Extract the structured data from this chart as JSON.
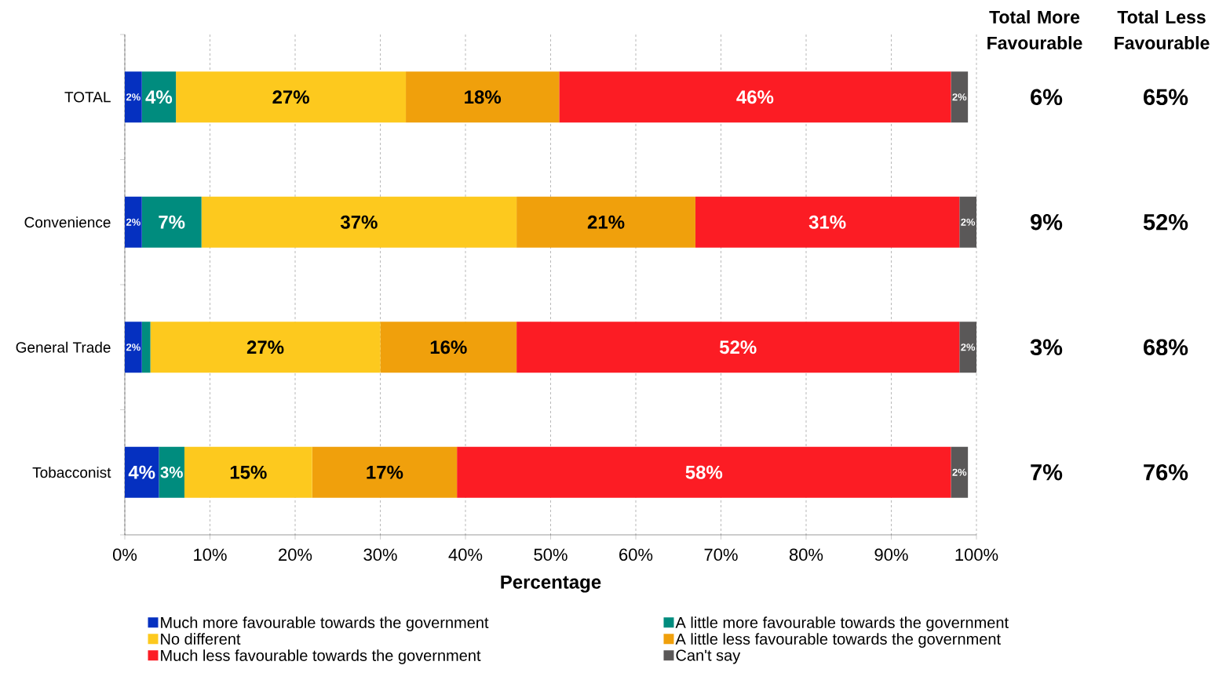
{
  "chart_data": {
    "type": "bar",
    "orientation": "horizontal",
    "stacked": true,
    "categories": [
      "TOTAL",
      "Convenience",
      "General Trade",
      "Tobacconist"
    ],
    "series": [
      {
        "name": "Much more favourable towards the government",
        "color": "#0530c0",
        "values": [
          2,
          2,
          2,
          4
        ],
        "value_labels": [
          "2%",
          "2%",
          "2%",
          "4%"
        ]
      },
      {
        "name": "A little more favourable towards the government",
        "color": "#008c7e",
        "values": [
          4,
          7,
          1,
          3
        ],
        "value_labels": [
          "4%",
          "7%",
          null,
          "3%"
        ]
      },
      {
        "name": "No different",
        "color": "#fdc91e",
        "values": [
          27,
          37,
          27,
          15
        ],
        "value_labels": [
          "27%",
          "37%",
          "27%",
          "15%"
        ]
      },
      {
        "name": "A little less favourable towards the government",
        "color": "#f0a00c",
        "values": [
          18,
          21,
          16,
          17
        ],
        "value_labels": [
          "18%",
          "21%",
          "16%",
          "17%"
        ]
      },
      {
        "name": "Much less favourable towards the government",
        "color": "#fc1c24",
        "values": [
          46,
          31,
          52,
          58
        ],
        "value_labels": [
          "46%",
          "31%",
          "52%",
          "58%"
        ]
      },
      {
        "name": "Can't say",
        "color": "#5a5858",
        "values": [
          2,
          2,
          2,
          2
        ],
        "value_labels": [
          "2%",
          "2%",
          "2%",
          "2%"
        ]
      }
    ],
    "xlim": [
      0,
      100
    ],
    "xticks": [
      {
        "value": 0,
        "label": "0%"
      },
      {
        "value": 10,
        "label": "10%"
      },
      {
        "value": 20,
        "label": "20%"
      },
      {
        "value": 30,
        "label": "30%"
      },
      {
        "value": 40,
        "label": "40%"
      },
      {
        "value": 50,
        "label": "50%"
      },
      {
        "value": 60,
        "label": "60%"
      },
      {
        "value": 70,
        "label": "70%"
      },
      {
        "value": 80,
        "label": "80%"
      },
      {
        "value": 90,
        "label": "90%"
      },
      {
        "value": 100,
        "label": "100%"
      }
    ],
    "xlabel": "Percentage",
    "grid": "x",
    "legend": "bottom",
    "annotations": [
      "Total More Favourable",
      "Total Less Favourable",
      "6%",
      "65%",
      "9%",
      "52%",
      "3%",
      "68%",
      "7%",
      "76%"
    ]
  }
}
